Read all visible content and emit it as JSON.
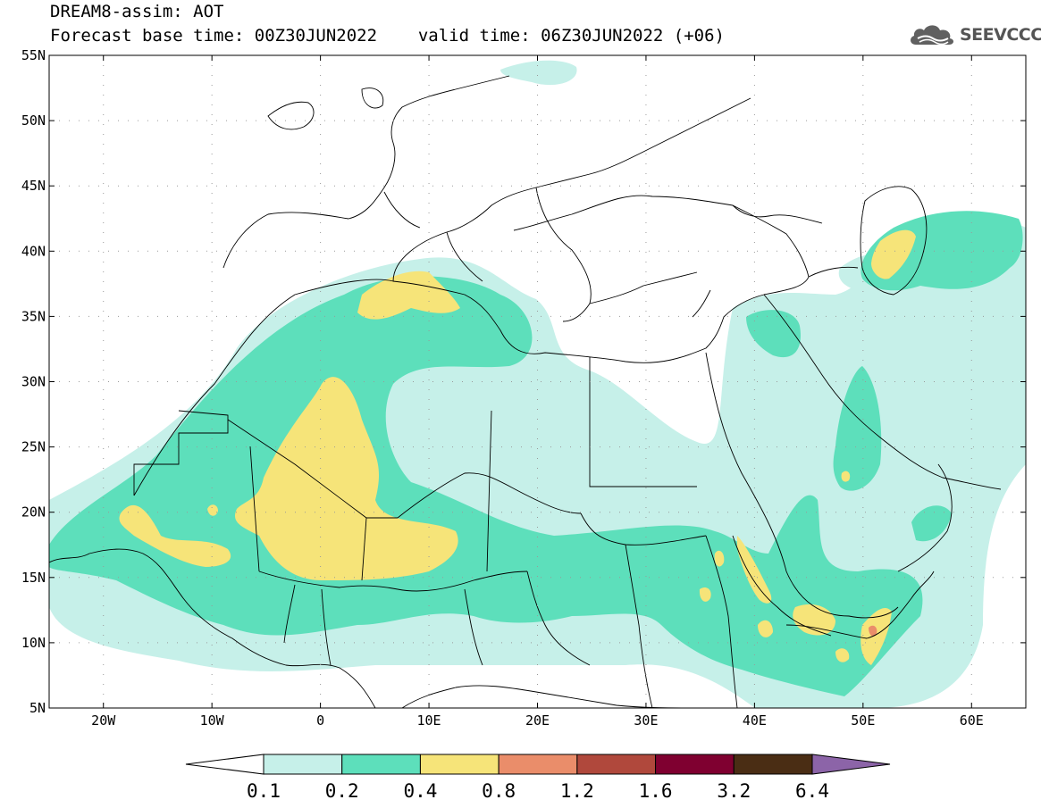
{
  "header": {
    "title": "DREAM8-assim: AOT",
    "base_time": "Forecast base time: 00Z30JUN2022",
    "valid_time": "valid time: 06Z30JUN2022 (+06)"
  },
  "logo": {
    "text": "SEEVCCC",
    "icon": "cloud-icon"
  },
  "map": {
    "lat_ticks": [
      "55N",
      "50N",
      "45N",
      "40N",
      "35N",
      "30N",
      "25N",
      "20N",
      "15N",
      "10N",
      "5N"
    ],
    "lon_ticks": [
      "20W",
      "10W",
      "0",
      "10E",
      "20E",
      "30E",
      "40E",
      "50E",
      "60E"
    ],
    "lat_range": [
      5,
      55
    ],
    "lon_range": [
      -25,
      65
    ],
    "gridlines": "dotted"
  },
  "colorbar": {
    "labels": [
      "0.1",
      "0.2",
      "0.4",
      "0.8",
      "1.2",
      "1.6",
      "3.2",
      "6.4"
    ],
    "colors": [
      "#c6f0e9",
      "#5ddfbb",
      "#f6e479",
      "#ea8d6a",
      "#b0483c",
      "#7f0030",
      "#4a2d14"
    ],
    "under_color": "#ffffff",
    "over_color": "#8c64a8"
  }
}
